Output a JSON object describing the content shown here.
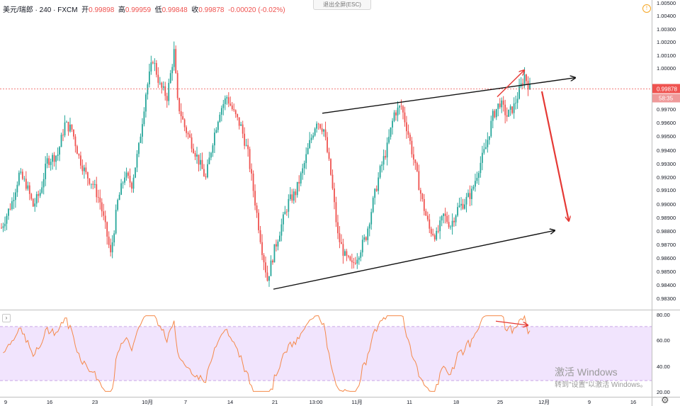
{
  "header": {
    "symbol": "美元/瑞郎 · 240 · FXCM",
    "open_label": "开",
    "open": "0.99898",
    "high_label": "高",
    "high": "0.99959",
    "low_label": "低",
    "low": "0.99848",
    "close_label": "收",
    "close": "0.99878",
    "change": "-0.00020 (-0.02%)"
  },
  "exit_fullscreen_label": "退出全屏(ESC)",
  "warning_icon": "!",
  "settings_icon": "⚙",
  "collapse_icon": "›",
  "watermark": {
    "line1": "激活 Windows",
    "line2": "转到\"设置\"以激活 Windows。"
  },
  "colors": {
    "up": "#26a69a",
    "down": "#ef5350",
    "rsi": "#f5894a",
    "rsi_band": "#f1e4fd",
    "trend_black": "#111111",
    "trend_red": "#e53935"
  },
  "chart_data": [
    {
      "type": "candlestick",
      "price_axis": {
        "ticks": [
          "1.00500",
          "1.00400",
          "1.00300",
          "1.00200",
          "1.00100",
          "1.00000",
          "0.99878",
          "0.99700",
          "0.99600",
          "0.99500",
          "0.99400",
          "0.99300",
          "0.99200",
          "0.99100",
          "0.99000",
          "0.98900",
          "0.98800",
          "0.98700",
          "0.98600",
          "0.98500",
          "0.98400",
          "0.98300"
        ],
        "last_price": "0.99878",
        "countdown": "58:35",
        "ylim": [
          0.9826,
          1.0053
        ]
      },
      "time_axis": {
        "labels": [
          "9",
          "16",
          "23",
          "10月",
          "7",
          "14",
          "21",
          "13:00",
          "11月",
          "11",
          "18",
          "25",
          "12月",
          "9",
          "16"
        ]
      },
      "trend_lines": [
        {
          "from": [
            0.4,
            0.997
          ],
          "to": [
            0.85,
            0.9996
          ]
        },
        {
          "from": [
            0.4,
            0.9841
          ],
          "to": [
            0.815,
            0.9884
          ]
        }
      ],
      "arrows": [
        {
          "label": "",
          "direction": "down",
          "from_price": 0.9986,
          "to_price": 0.9891
        }
      ],
      "series": [
        {
          "kind": "candles",
          "source": "generated from visible shape",
          "points": "see script"
        }
      ]
    },
    {
      "type": "line",
      "indicator_axis": {
        "ticks": [
          "80.00",
          "60.00",
          "40.00",
          "20.00"
        ],
        "band": [
          30,
          70
        ],
        "ylim": [
          18,
          82
        ]
      }
    }
  ]
}
